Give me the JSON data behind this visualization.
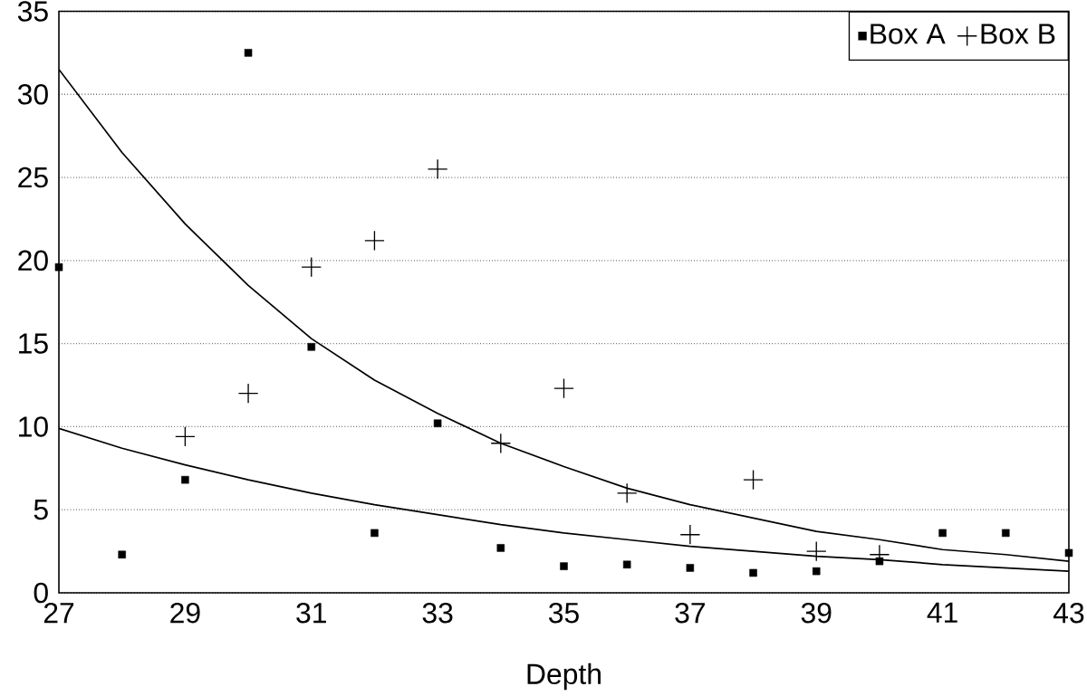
{
  "chart_data": {
    "type": "scatter",
    "xlabel": "Depth",
    "xlim": [
      27,
      43
    ],
    "ylim": [
      0,
      35
    ],
    "xticks": [
      27,
      29,
      31,
      33,
      35,
      37,
      39,
      41,
      43
    ],
    "yticks": [
      0,
      5,
      10,
      15,
      20,
      25,
      30,
      35
    ],
    "grid": "y",
    "legend": "top right",
    "series": [
      {
        "name": "Box A",
        "marker": "square",
        "color": "#000000",
        "x": [
          27,
          28,
          29,
          30,
          31,
          32,
          33,
          34,
          35,
          36,
          37,
          38,
          39,
          40,
          41,
          42,
          43
        ],
        "values": [
          19.6,
          2.3,
          6.8,
          32.5,
          14.8,
          3.6,
          10.2,
          2.7,
          1.6,
          1.7,
          1.5,
          1.2,
          1.3,
          1.9,
          3.6,
          3.6,
          2.4
        ]
      },
      {
        "name": "Box B",
        "marker": "cross",
        "color": "#000000",
        "x": [
          29,
          30,
          31,
          32,
          33,
          34,
          35,
          36,
          37,
          38,
          39,
          40
        ],
        "values": [
          9.4,
          12,
          19.6,
          21.2,
          25.5,
          9,
          12.3,
          6,
          3.5,
          6.8,
          2.5,
          2.3
        ]
      },
      {
        "type": "line",
        "marker": "none",
        "line_style": "solid",
        "color": "#000000",
        "x": [
          27,
          28,
          29,
          30,
          31,
          32,
          33,
          34,
          35,
          36,
          37,
          38,
          39,
          40,
          41,
          42,
          43
        ],
        "values": [
          31.5,
          26.5,
          22.2,
          18.5,
          15.3,
          12.8,
          10.8,
          9.0,
          7.6,
          6.3,
          5.3,
          4.5,
          3.7,
          3.2,
          2.6,
          2.3,
          1.9
        ]
      },
      {
        "type": "line",
        "marker": "none",
        "line_style": "solid",
        "color": "#000000",
        "x": [
          27,
          28,
          29,
          30,
          31,
          32,
          33,
          34,
          35,
          36,
          37,
          38,
          39,
          40,
          41,
          42,
          43
        ],
        "values": [
          9.9,
          8.7,
          7.7,
          6.8,
          6.0,
          5.3,
          4.7,
          4.1,
          3.6,
          3.2,
          2.8,
          2.5,
          2.2,
          2.0,
          1.7,
          1.5,
          1.3
        ]
      }
    ]
  }
}
